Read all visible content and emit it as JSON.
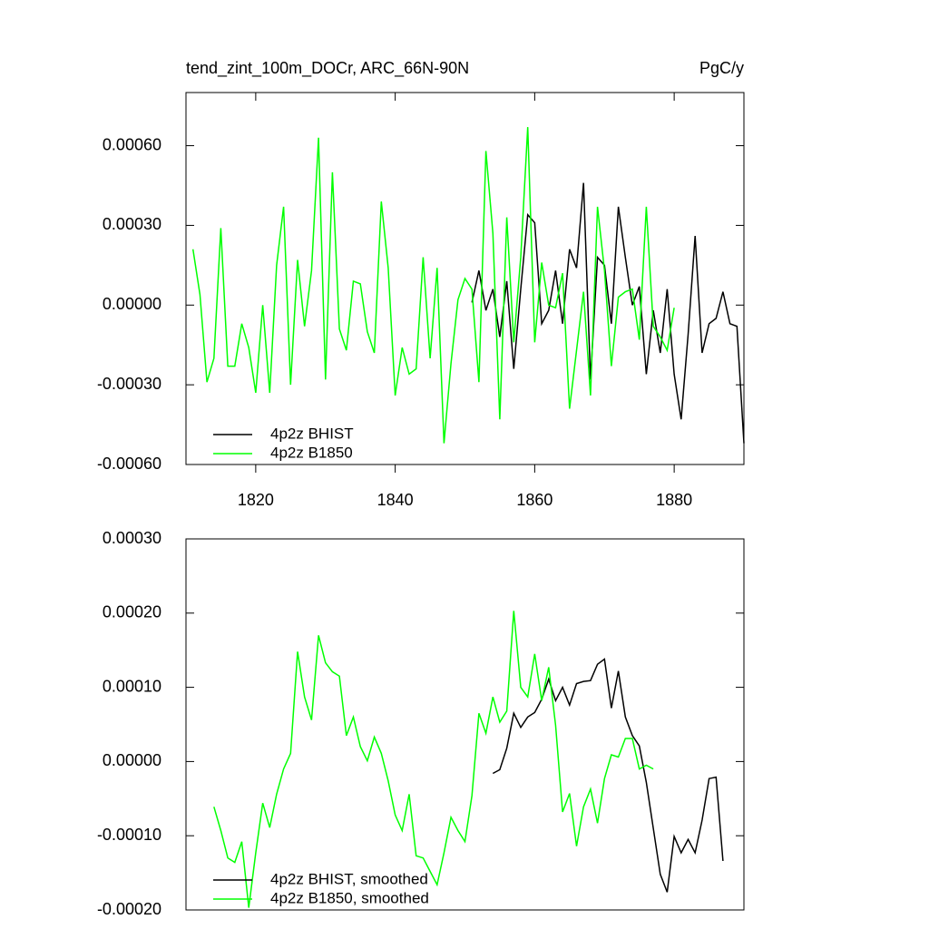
{
  "chart_data": [
    {
      "type": "line",
      "title": "tend_zint_100m_DOCr, ARC_66N-90N",
      "units": "PgC/y",
      "xlim": [
        1810,
        1890
      ],
      "xticks": [
        1820,
        1840,
        1860,
        1880
      ],
      "ylim": [
        -0.0006,
        0.0008
      ],
      "yticks": [
        {
          "value": -0.0006,
          "label": "-0.00060"
        },
        {
          "value": -0.0003,
          "label": "-0.00030"
        },
        {
          "value": 0,
          "label": "0.00000"
        },
        {
          "value": 0.0003,
          "label": "0.00030"
        },
        {
          "value": 0.0006,
          "label": "0.00060"
        }
      ],
      "legend": "lower left",
      "series": [
        {
          "name": "4p2z BHIST",
          "color": "#000000",
          "x": [
            1851,
            1852,
            1853,
            1854,
            1855,
            1856,
            1857,
            1858,
            1859,
            1860,
            1861,
            1862,
            1863,
            1864,
            1865,
            1866,
            1867,
            1868,
            1869,
            1870,
            1871,
            1872,
            1873,
            1874,
            1875,
            1876,
            1877,
            1878,
            1879,
            1880,
            1881,
            1882,
            1883,
            1884,
            1885,
            1886,
            1887,
            1888,
            1889,
            1890
          ],
          "values": [
            1e-05,
            0.00013,
            -2e-05,
            6e-05,
            -0.00012,
            9e-05,
            -0.00024,
            6e-05,
            0.00034,
            0.00031,
            -7e-05,
            -2e-05,
            0.00013,
            -7e-05,
            0.00021,
            0.00014,
            0.00046,
            -0.00028,
            0.00018,
            0.00015,
            -7e-05,
            0.00037,
            0.00018,
            0,
            7e-05,
            -0.00026,
            -2e-05,
            -0.00018,
            6e-05,
            -0.00026,
            -0.00043,
            -0.00011,
            0.00026,
            -0.00018,
            -7e-05,
            -5e-05,
            5e-05,
            -7e-05,
            -8e-05,
            -0.00052
          ]
        },
        {
          "name": "4p2z B1850",
          "color": "#00ff00",
          "x": [
            1811,
            1812,
            1813,
            1814,
            1815,
            1816,
            1817,
            1818,
            1819,
            1820,
            1821,
            1822,
            1823,
            1824,
            1825,
            1826,
            1827,
            1828,
            1829,
            1830,
            1831,
            1832,
            1833,
            1834,
            1835,
            1836,
            1837,
            1838,
            1839,
            1840,
            1841,
            1842,
            1843,
            1844,
            1845,
            1846,
            1847,
            1848,
            1849,
            1850,
            1851,
            1852,
            1853,
            1854,
            1855,
            1856,
            1857,
            1858,
            1859,
            1860,
            1861,
            1862,
            1863,
            1864,
            1865,
            1866,
            1867,
            1868,
            1869,
            1870,
            1871,
            1872,
            1873,
            1874,
            1875,
            1876,
            1877,
            1878,
            1879,
            1880
          ],
          "values": [
            0.00021,
            4e-05,
            -0.00029,
            -0.0002,
            0.00029,
            -0.00023,
            -0.00023,
            -7e-05,
            -0.00016,
            -0.00033,
            0,
            -0.00033,
            0.00015,
            0.00037,
            -0.0003,
            0.00017,
            -8e-05,
            0.00013,
            0.00063,
            -0.00028,
            0.0005,
            -9e-05,
            -0.00017,
            9e-05,
            8e-05,
            -0.0001,
            -0.00018,
            0.00039,
            0.00014,
            -0.00034,
            -0.00016,
            -0.00026,
            -0.00024,
            0.00018,
            -0.0002,
            0.00014,
            -0.00052,
            -0.00022,
            2e-05,
            0.0001,
            6e-05,
            -0.00029,
            0.00058,
            0.00027,
            -0.00043,
            0.00033,
            -0.00014,
            0.00018,
            0.00067,
            -0.00014,
            0.00016,
            0,
            -1e-05,
            0.00012,
            -0.00039,
            -0.00017,
            5e-05,
            -0.00034,
            0.00037,
            0.00013,
            -0.00023,
            3e-05,
            5e-05,
            6e-05,
            -0.00013,
            0.00037,
            -8e-05,
            -0.00012,
            -0.00017,
            -1e-05
          ]
        }
      ]
    },
    {
      "type": "line",
      "xlim": [
        1810,
        1890
      ],
      "ylim": [
        -0.0002,
        0.0003
      ],
      "yticks": [
        {
          "value": -0.0002,
          "label": "-0.00020"
        },
        {
          "value": -0.0001,
          "label": "-0.00010"
        },
        {
          "value": 0,
          "label": "0.00000"
        },
        {
          "value": 0.0001,
          "label": "0.00010"
        },
        {
          "value": 0.0002,
          "label": "0.00020"
        },
        {
          "value": 0.0003,
          "label": "0.00030"
        }
      ],
      "legend": "lower left",
      "series": [
        {
          "name": "4p2z BHIST, smoothed",
          "color": "#000000",
          "x": [
            1854,
            1855,
            1856,
            1857,
            1858,
            1859,
            1860,
            1861,
            1862,
            1863,
            1864,
            1865,
            1866,
            1867,
            1868,
            1869,
            1870,
            1871,
            1872,
            1873,
            1874,
            1875,
            1876,
            1877,
            1878,
            1879,
            1880,
            1881,
            1882,
            1883,
            1884,
            1885,
            1886,
            1887
          ],
          "values": [
            -1.6e-05,
            -1.1e-05,
            1.8e-05,
            6.5e-05,
            4.6e-05,
            6e-05,
            6.6e-05,
            8.4e-05,
            0.000111,
            8.2e-05,
            0.0001,
            7.6e-05,
            0.000105,
            0.000108,
            0.000109,
            0.000131,
            0.000138,
            7.2e-05,
            0.000122,
            6e-05,
            3.5e-05,
            2.1e-05,
            -2.8e-05,
            -9e-05,
            -0.000152,
            -0.000176,
            -0.000101,
            -0.000123,
            -0.000105,
            -0.000123,
            -7.9e-05,
            -2.3e-05,
            -2.1e-05,
            -0.000134
          ]
        },
        {
          "name": "4p2z B1850, smoothed",
          "color": "#00ff00",
          "x": [
            1814,
            1815,
            1816,
            1817,
            1818,
            1819,
            1820,
            1821,
            1822,
            1823,
            1824,
            1825,
            1826,
            1827,
            1828,
            1829,
            1830,
            1831,
            1832,
            1833,
            1834,
            1835,
            1836,
            1837,
            1838,
            1839,
            1840,
            1841,
            1842,
            1843,
            1844,
            1845,
            1846,
            1847,
            1848,
            1849,
            1850,
            1851,
            1852,
            1853,
            1854,
            1855,
            1856,
            1857,
            1858,
            1859,
            1860,
            1861,
            1862,
            1863,
            1864,
            1865,
            1866,
            1867,
            1868,
            1869,
            1870,
            1871,
            1872,
            1873,
            1874,
            1875,
            1876,
            1877
          ],
          "values": [
            -6.1e-05,
            -9.3e-05,
            -0.00013,
            -0.000136,
            -0.000108,
            -0.000197,
            -0.000123,
            -5.6e-05,
            -8.9e-05,
            -4.4e-05,
            -1e-05,
            1.1e-05,
            0.000148,
            8.7e-05,
            5.6e-05,
            0.00017,
            0.000133,
            0.000121,
            0.000115,
            3.5e-05,
            6e-05,
            2e-05,
            1e-06,
            3.3e-05,
            1.1e-05,
            -2.6e-05,
            -7.2e-05,
            -9.3e-05,
            -4.4e-05,
            -0.000127,
            -0.00013,
            -0.000148,
            -0.000166,
            -0.000123,
            -7.5e-05,
            -9.3e-05,
            -0.000108,
            -4.6e-05,
            6.5e-05,
            3.8e-05,
            8.7e-05,
            5.3e-05,
            6.8e-05,
            0.000203,
            0.0001,
            8.7e-05,
            0.000145,
            8.2e-05,
            0.000127,
            4.9e-05,
            -6.8e-05,
            -4.3e-05,
            -0.000114,
            -6.1e-05,
            -3.7e-05,
            -8.3e-05,
            -2.3e-05,
            9e-06,
            6e-06,
            3.1e-05,
            3.1e-05,
            -1e-05,
            -5e-06,
            -1e-05
          ]
        }
      ]
    }
  ]
}
